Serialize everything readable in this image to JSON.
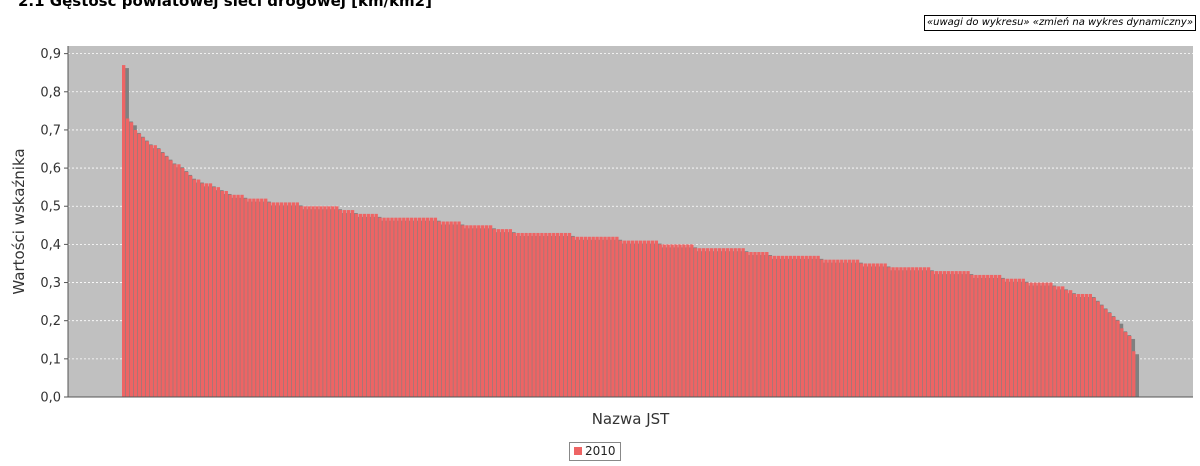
{
  "header": {
    "title": "2.1 Gęstość powiatowej sieci drogowej [km/km2]",
    "links": {
      "comments": "«uwagi do wykresu»",
      "dynamic": "«zmień na wykres dynamiczny»"
    }
  },
  "colors": {
    "plot_background": "#c0c0c0",
    "bar_fill": "#ee6464",
    "bar_stroke": "#d65656",
    "shadow": "#808080",
    "gridline": "#ffffff"
  },
  "chart_data": {
    "type": "bar",
    "title": "2.1 Gęstość powiatowej sieci drogowej [km/km2]",
    "xlabel": "Nazwa JST",
    "ylabel": "Wartości wskaźnika",
    "ylim": [
      0,
      0.92
    ],
    "yticks": [
      "0,0",
      "0,1",
      "0,2",
      "0,3",
      "0,4",
      "0,5",
      "0,6",
      "0,7",
      "0,8",
      "0,9"
    ],
    "grid": true,
    "legend_position": "bottom-center",
    "series": [
      {
        "name": "2010",
        "color": "#ee6464",
        "values": [
          0.87,
          0.73,
          0.72,
          0.7,
          0.69,
          0.68,
          0.67,
          0.66,
          0.66,
          0.65,
          0.64,
          0.63,
          0.62,
          0.61,
          0.61,
          0.6,
          0.59,
          0.58,
          0.57,
          0.57,
          0.56,
          0.56,
          0.56,
          0.55,
          0.55,
          0.54,
          0.54,
          0.53,
          0.53,
          0.53,
          0.53,
          0.52,
          0.52,
          0.52,
          0.52,
          0.52,
          0.52,
          0.51,
          0.51,
          0.51,
          0.51,
          0.51,
          0.51,
          0.51,
          0.51,
          0.5,
          0.5,
          0.5,
          0.5,
          0.5,
          0.5,
          0.5,
          0.5,
          0.5,
          0.5,
          0.49,
          0.49,
          0.49,
          0.49,
          0.48,
          0.48,
          0.48,
          0.48,
          0.48,
          0.48,
          0.47,
          0.47,
          0.47,
          0.47,
          0.47,
          0.47,
          0.47,
          0.47,
          0.47,
          0.47,
          0.47,
          0.47,
          0.47,
          0.47,
          0.47,
          0.46,
          0.46,
          0.46,
          0.46,
          0.46,
          0.46,
          0.45,
          0.45,
          0.45,
          0.45,
          0.45,
          0.45,
          0.45,
          0.45,
          0.44,
          0.44,
          0.44,
          0.44,
          0.44,
          0.43,
          0.43,
          0.43,
          0.43,
          0.43,
          0.43,
          0.43,
          0.43,
          0.43,
          0.43,
          0.43,
          0.43,
          0.43,
          0.43,
          0.43,
          0.42,
          0.42,
          0.42,
          0.42,
          0.42,
          0.42,
          0.42,
          0.42,
          0.42,
          0.42,
          0.42,
          0.42,
          0.41,
          0.41,
          0.41,
          0.41,
          0.41,
          0.41,
          0.41,
          0.41,
          0.41,
          0.41,
          0.4,
          0.4,
          0.4,
          0.4,
          0.4,
          0.4,
          0.4,
          0.4,
          0.4,
          0.39,
          0.39,
          0.39,
          0.39,
          0.39,
          0.39,
          0.39,
          0.39,
          0.39,
          0.39,
          0.39,
          0.39,
          0.39,
          0.38,
          0.38,
          0.38,
          0.38,
          0.38,
          0.38,
          0.37,
          0.37,
          0.37,
          0.37,
          0.37,
          0.37,
          0.37,
          0.37,
          0.37,
          0.37,
          0.37,
          0.37,
          0.37,
          0.36,
          0.36,
          0.36,
          0.36,
          0.36,
          0.36,
          0.36,
          0.36,
          0.36,
          0.36,
          0.35,
          0.35,
          0.35,
          0.35,
          0.35,
          0.35,
          0.35,
          0.34,
          0.34,
          0.34,
          0.34,
          0.34,
          0.34,
          0.34,
          0.34,
          0.34,
          0.34,
          0.34,
          0.33,
          0.33,
          0.33,
          0.33,
          0.33,
          0.33,
          0.33,
          0.33,
          0.33,
          0.33,
          0.32,
          0.32,
          0.32,
          0.32,
          0.32,
          0.32,
          0.32,
          0.32,
          0.31,
          0.31,
          0.31,
          0.31,
          0.31,
          0.31,
          0.3,
          0.3,
          0.3,
          0.3,
          0.3,
          0.3,
          0.3,
          0.29,
          0.29,
          0.29,
          0.28,
          0.28,
          0.27,
          0.27,
          0.27,
          0.27,
          0.27,
          0.26,
          0.25,
          0.24,
          0.23,
          0.22,
          0.21,
          0.2,
          0.18,
          0.17,
          0.16,
          0.12
        ]
      }
    ]
  }
}
